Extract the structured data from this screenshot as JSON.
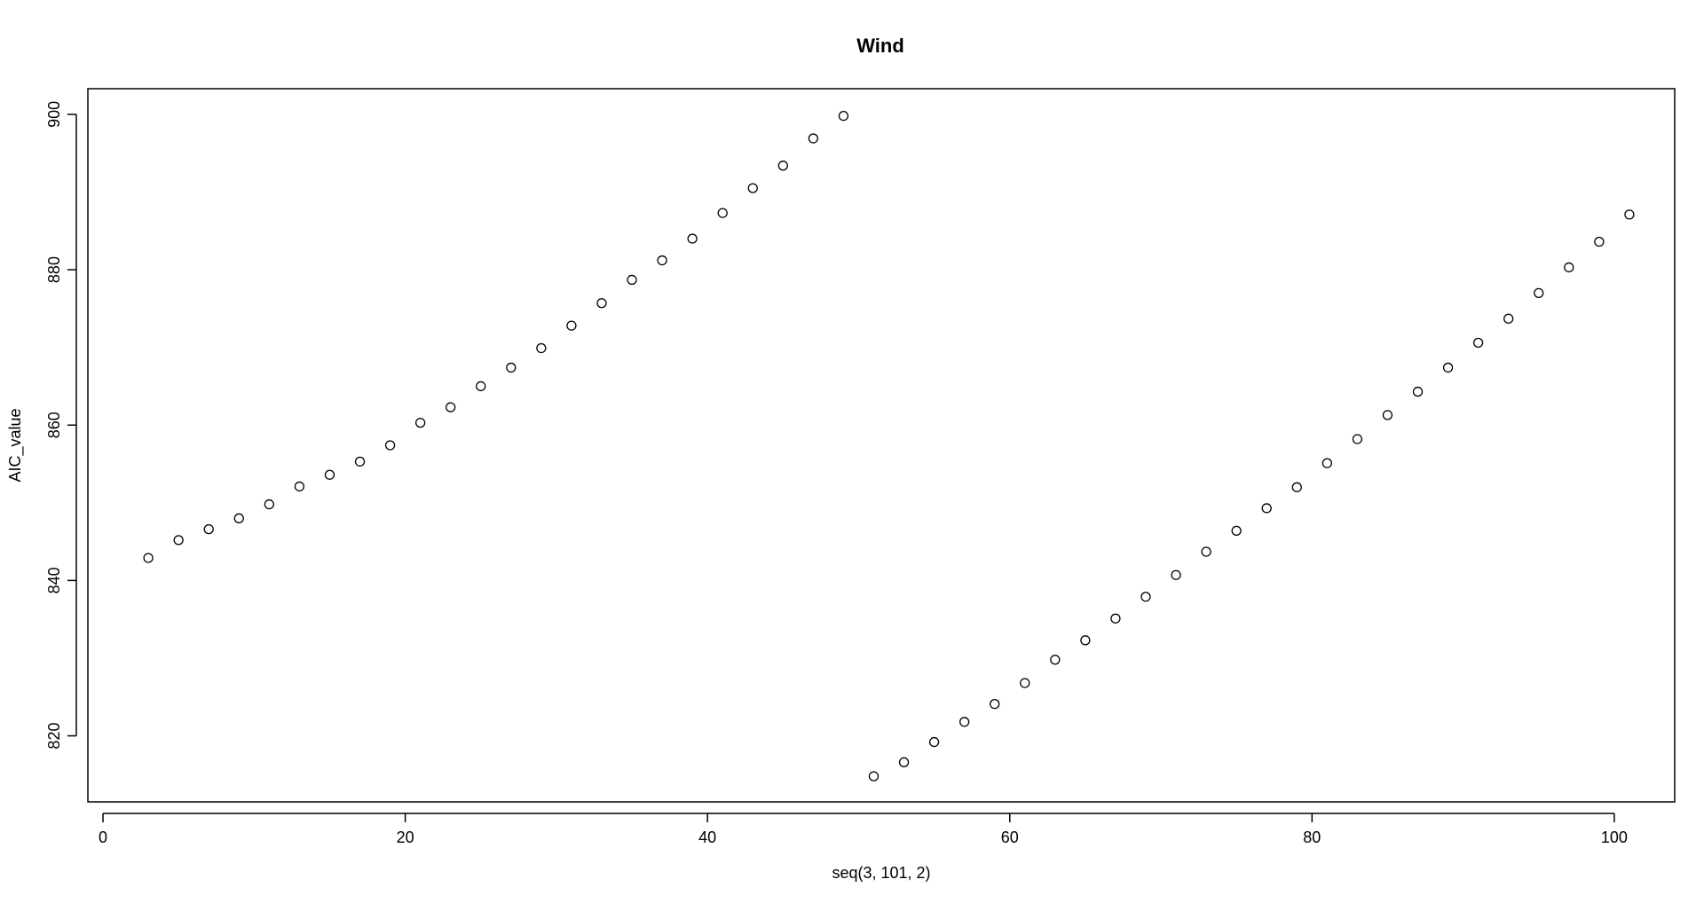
{
  "chart_data": {
    "type": "scatter",
    "title": "Wind",
    "xlabel": "seq(3, 101, 2)",
    "ylabel": "AIC_value",
    "xlim": [
      -1,
      104
    ],
    "ylim": [
      811.5,
      903.3
    ],
    "x_ticks": [
      0,
      20,
      40,
      60,
      80,
      100
    ],
    "x_tick_labels": [
      "0",
      "20",
      "40",
      "60",
      "80",
      "100"
    ],
    "y_ticks": [
      820,
      840,
      860,
      880,
      900
    ],
    "y_tick_labels": [
      "820",
      "840",
      "860",
      "880",
      "900"
    ],
    "grid": false,
    "legend": "none",
    "marker": "open-circle",
    "colors": {
      "marker": "#000000",
      "axes": "#000000",
      "background": "#ffffff"
    },
    "series": [
      {
        "x": [
          3,
          5,
          7,
          9,
          11,
          13,
          15,
          17,
          19,
          21,
          23,
          25,
          27,
          29,
          31,
          33,
          35,
          37,
          39,
          41,
          43,
          45,
          47,
          49,
          51,
          53,
          55,
          57,
          59,
          61,
          63,
          65,
          67,
          69,
          71,
          73,
          75,
          77,
          79,
          81,
          83,
          85,
          87,
          89,
          91,
          93,
          95,
          97,
          99,
          101
        ],
        "y": [
          842.9,
          845.2,
          846.6,
          848.0,
          849.8,
          852.1,
          853.6,
          855.3,
          857.4,
          860.3,
          862.3,
          865.0,
          867.4,
          869.9,
          872.8,
          875.7,
          878.7,
          881.2,
          884.0,
          887.3,
          890.5,
          893.4,
          896.9,
          899.8,
          814.8,
          816.6,
          819.2,
          821.8,
          824.1,
          826.8,
          829.8,
          832.3,
          835.1,
          837.9,
          840.7,
          843.7,
          846.4,
          849.3,
          852.0,
          855.1,
          858.2,
          861.3,
          864.3,
          867.4,
          870.6,
          873.7,
          877.0,
          880.3,
          883.6,
          887.1
        ]
      }
    ]
  }
}
